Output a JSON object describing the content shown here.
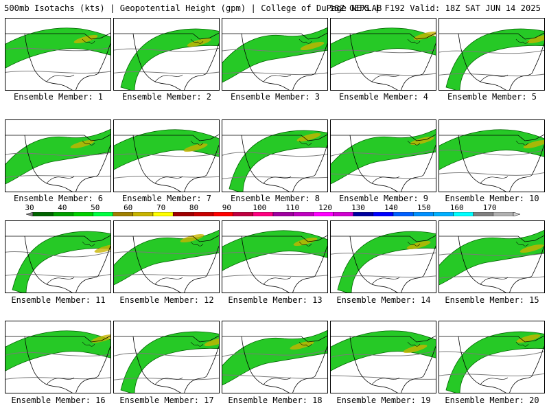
{
  "header": {
    "title": "500mb Isotachs (kts) | Geopotential Height (gpm) | College of DuPage NEXLAB",
    "valid": "18Z GEFS | F192 Valid: 18Z SAT JUN 14 2025"
  },
  "colorbar": {
    "ticks": [
      "30",
      "40",
      "50",
      "60",
      "70",
      "80",
      "90",
      "100",
      "110",
      "120",
      "130",
      "140",
      "150",
      "160",
      "170"
    ],
    "colors": [
      "#006400",
      "#00a000",
      "#00d000",
      "#00ff40",
      "#a08000",
      "#c8b400",
      "#ffff00",
      "#a00000",
      "#c80000",
      "#ff0000",
      "#c00040",
      "#ff0080",
      "#a000a0",
      "#c000c0",
      "#ff00ff",
      "#d000d0",
      "#0000a0",
      "#0000ff",
      "#0060ff",
      "#0090ff",
      "#00b0ff",
      "#00ffff",
      "#808080",
      "#b0b0b0"
    ]
  },
  "members": [
    {
      "label": "Ensemble Member: 1"
    },
    {
      "label": "Ensemble Member: 2"
    },
    {
      "label": "Ensemble Member: 3"
    },
    {
      "label": "Ensemble Member: 4"
    },
    {
      "label": "Ensemble Member: 5"
    },
    {
      "label": "Ensemble Member: 6"
    },
    {
      "label": "Ensemble Member: 7"
    },
    {
      "label": "Ensemble Member: 8"
    },
    {
      "label": "Ensemble Member: 9"
    },
    {
      "label": "Ensemble Member: 10"
    },
    {
      "label": "Ensemble Member: 11"
    },
    {
      "label": "Ensemble Member: 12"
    },
    {
      "label": "Ensemble Member: 13"
    },
    {
      "label": "Ensemble Member: 14"
    },
    {
      "label": "Ensemble Member: 15"
    },
    {
      "label": "Ensemble Member: 16"
    },
    {
      "label": "Ensemble Member: 17"
    },
    {
      "label": "Ensemble Member: 18"
    },
    {
      "label": "Ensemble Member: 19"
    },
    {
      "label": "Ensemble Member: 20"
    }
  ]
}
